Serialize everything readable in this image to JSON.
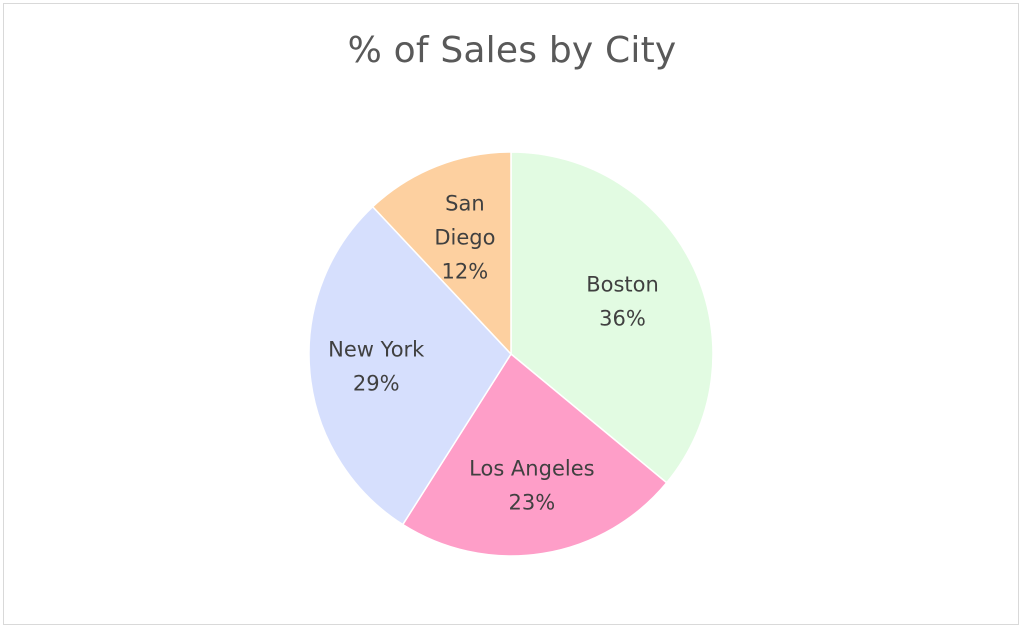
{
  "chart_data": {
    "type": "pie",
    "title": "% of Sales by City",
    "categories": [
      "Boston",
      "Los Angeles",
      "New York",
      "San Diego"
    ],
    "values": [
      36,
      23,
      29,
      12
    ],
    "labels": [
      "36%",
      "23%",
      "29%",
      "12%"
    ],
    "colors": [
      "#e2fbe2",
      "#fe9ec8",
      "#d6dffd",
      "#fdd0a0"
    ],
    "start_angle_deg": 0,
    "direction": "clockwise",
    "legend": "none",
    "data_label_position": "inside"
  }
}
